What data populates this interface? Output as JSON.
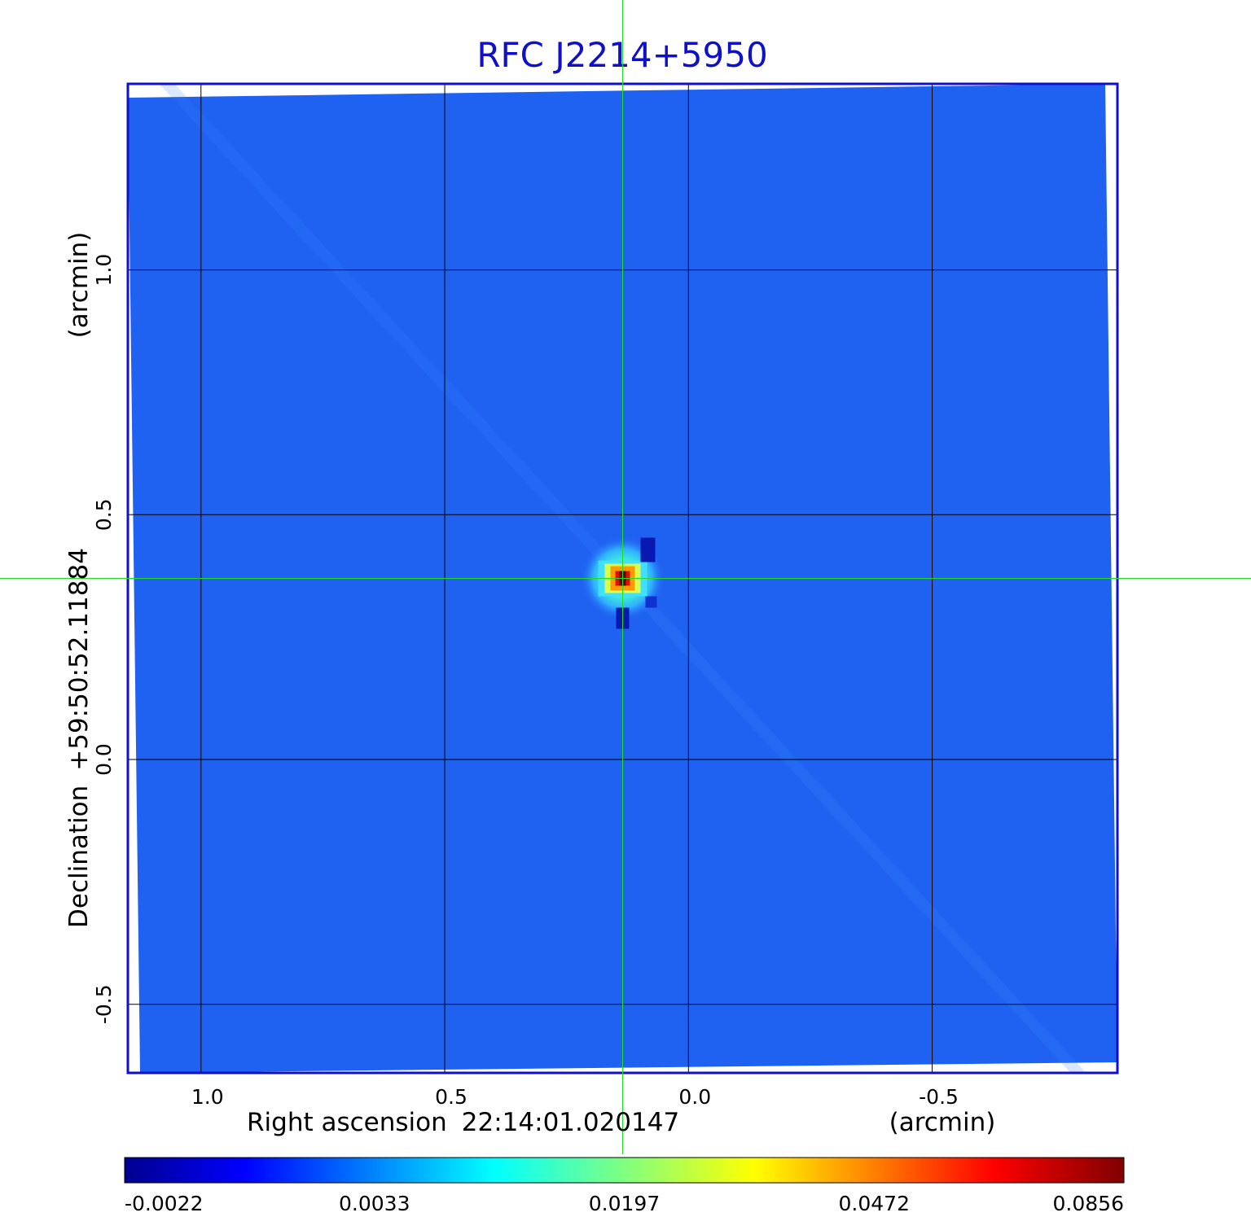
{
  "title": "RFC J2214+5950",
  "x_axis": {
    "label": "Right ascension",
    "center": "22:14:01.020147",
    "unit": "(arcmin)",
    "ticks": [
      "1.0",
      "0.5",
      "0.0",
      "-0.5"
    ],
    "tick_values": [
      1.0,
      0.5,
      0.0,
      -0.5
    ],
    "range": [
      1.15,
      -0.88
    ]
  },
  "y_axis": {
    "label": "Declination",
    "center": "+59:50:52.11884",
    "unit": "(arcmin)",
    "ticks": [
      "1.0",
      "0.5",
      "0.0",
      "-0.5"
    ],
    "tick_values": [
      1.0,
      0.5,
      0.0,
      -0.5
    ],
    "range": [
      -0.64,
      1.38
    ]
  },
  "colorbar": {
    "labels": [
      "-0.0022",
      "0.0033",
      "0.0197",
      "0.0472",
      "0.0856"
    ],
    "colormap": "jet"
  },
  "source": {
    "ra_offset_arcmin": 0.135,
    "dec_offset_arcmin": 0.37
  },
  "colors": {
    "frame": "#1010c8",
    "title": "#1010c8",
    "background_map": "#1f62f2",
    "grid": "#000000",
    "crosshair": "#22dd22"
  },
  "grid_on": true
}
